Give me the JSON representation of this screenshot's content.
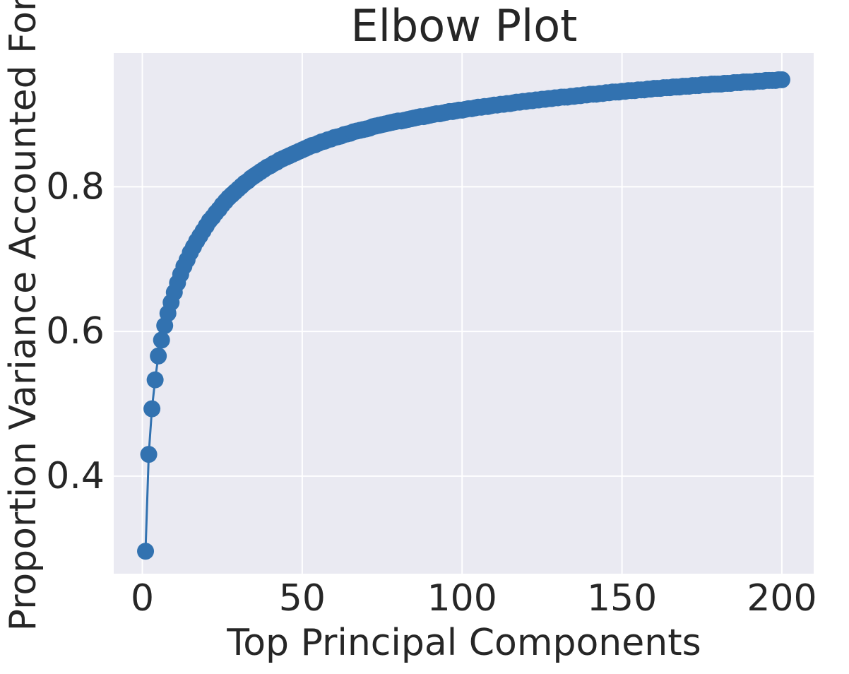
{
  "chart_data": {
    "type": "line",
    "title": "Elbow Plot",
    "xlabel": "Top Principal Components",
    "ylabel": "Proportion Variance Accounted For",
    "xlim": [
      -8.95,
      209.95
    ],
    "ylim": [
      0.265,
      0.985
    ],
    "xticks": [
      0,
      50,
      100,
      150,
      200
    ],
    "xtick_labels": [
      "0",
      "50",
      "100",
      "150",
      "200"
    ],
    "yticks": [
      0.4,
      0.6,
      0.8
    ],
    "ytick_labels": [
      "0.4",
      "0.6",
      "0.8"
    ],
    "grid": true,
    "markers": true,
    "color": "#3272b0",
    "x": [
      1,
      2,
      3,
      4,
      5,
      6,
      7,
      8,
      9,
      10,
      11,
      12,
      13,
      14,
      15,
      16,
      17,
      18,
      19,
      20,
      21,
      22,
      23,
      24,
      25,
      26,
      27,
      28,
      29,
      30,
      31,
      32,
      33,
      34,
      35,
      36,
      37,
      38,
      39,
      40,
      41,
      42,
      43,
      44,
      45,
      46,
      47,
      48,
      49,
      50,
      51,
      52,
      53,
      54,
      55,
      56,
      57,
      58,
      59,
      60,
      61,
      62,
      63,
      64,
      65,
      66,
      67,
      68,
      69,
      70,
      71,
      72,
      73,
      74,
      75,
      76,
      77,
      78,
      79,
      80,
      81,
      82,
      83,
      84,
      85,
      86,
      87,
      88,
      89,
      90,
      91,
      92,
      93,
      94,
      95,
      96,
      97,
      98,
      99,
      100,
      101,
      102,
      103,
      104,
      105,
      106,
      107,
      108,
      109,
      110,
      111,
      112,
      113,
      114,
      115,
      116,
      117,
      118,
      119,
      120,
      121,
      122,
      123,
      124,
      125,
      126,
      127,
      128,
      129,
      130,
      131,
      132,
      133,
      134,
      135,
      136,
      137,
      138,
      139,
      140,
      141,
      142,
      143,
      144,
      145,
      146,
      147,
      148,
      149,
      150,
      151,
      152,
      153,
      154,
      155,
      156,
      157,
      158,
      159,
      160,
      161,
      162,
      163,
      164,
      165,
      166,
      167,
      168,
      169,
      170,
      171,
      172,
      173,
      174,
      175,
      176,
      177,
      178,
      179,
      180,
      181,
      182,
      183,
      184,
      185,
      186,
      187,
      188,
      189,
      190,
      191,
      192,
      193,
      194,
      195,
      196,
      197,
      198,
      199,
      200
    ],
    "y": [
      0.296,
      0.43,
      0.493,
      0.533,
      0.566,
      0.588,
      0.608,
      0.625,
      0.64,
      0.654,
      0.667,
      0.679,
      0.69,
      0.699,
      0.709,
      0.717,
      0.725,
      0.732,
      0.739,
      0.746,
      0.753,
      0.758,
      0.764,
      0.769,
      0.775,
      0.78,
      0.785,
      0.789,
      0.793,
      0.797,
      0.801,
      0.805,
      0.808,
      0.812,
      0.815,
      0.818,
      0.821,
      0.824,
      0.827,
      0.829,
      0.832,
      0.834,
      0.837,
      0.839,
      0.841,
      0.843,
      0.845,
      0.847,
      0.849,
      0.851,
      0.853,
      0.855,
      0.857,
      0.858,
      0.86,
      0.862,
      0.863,
      0.865,
      0.866,
      0.868,
      0.869,
      0.87,
      0.872,
      0.873,
      0.874,
      0.876,
      0.877,
      0.878,
      0.879,
      0.88,
      0.881,
      0.883,
      0.884,
      0.885,
      0.886,
      0.887,
      0.888,
      0.889,
      0.89,
      0.891,
      0.891,
      0.892,
      0.893,
      0.894,
      0.895,
      0.896,
      0.897,
      0.897,
      0.898,
      0.899,
      0.9,
      0.901,
      0.901,
      0.902,
      0.903,
      0.904,
      0.904,
      0.905,
      0.906,
      0.906,
      0.907,
      0.908,
      0.908,
      0.909,
      0.91,
      0.91,
      0.911,
      0.911,
      0.912,
      0.913,
      0.913,
      0.914,
      0.914,
      0.915,
      0.915,
      0.916,
      0.917,
      0.917,
      0.918,
      0.918,
      0.919,
      0.919,
      0.92,
      0.92,
      0.921,
      0.921,
      0.922,
      0.922,
      0.923,
      0.923,
      0.924,
      0.924,
      0.924,
      0.925,
      0.925,
      0.926,
      0.926,
      0.927,
      0.927,
      0.928,
      0.928,
      0.928,
      0.929,
      0.929,
      0.93,
      0.93,
      0.931,
      0.931,
      0.931,
      0.932,
      0.932,
      0.933,
      0.933,
      0.933,
      0.934,
      0.934,
      0.934,
      0.935,
      0.935,
      0.936,
      0.936,
      0.936,
      0.937,
      0.937,
      0.937,
      0.938,
      0.938,
      0.938,
      0.939,
      0.939,
      0.939,
      0.94,
      0.94,
      0.94,
      0.941,
      0.941,
      0.941,
      0.942,
      0.942,
      0.942,
      0.942,
      0.943,
      0.943,
      0.943,
      0.944,
      0.944,
      0.944,
      0.945,
      0.945,
      0.945,
      0.945,
      0.946,
      0.946,
      0.946,
      0.947,
      0.947,
      0.947,
      0.947,
      0.948,
      0.948
    ]
  }
}
